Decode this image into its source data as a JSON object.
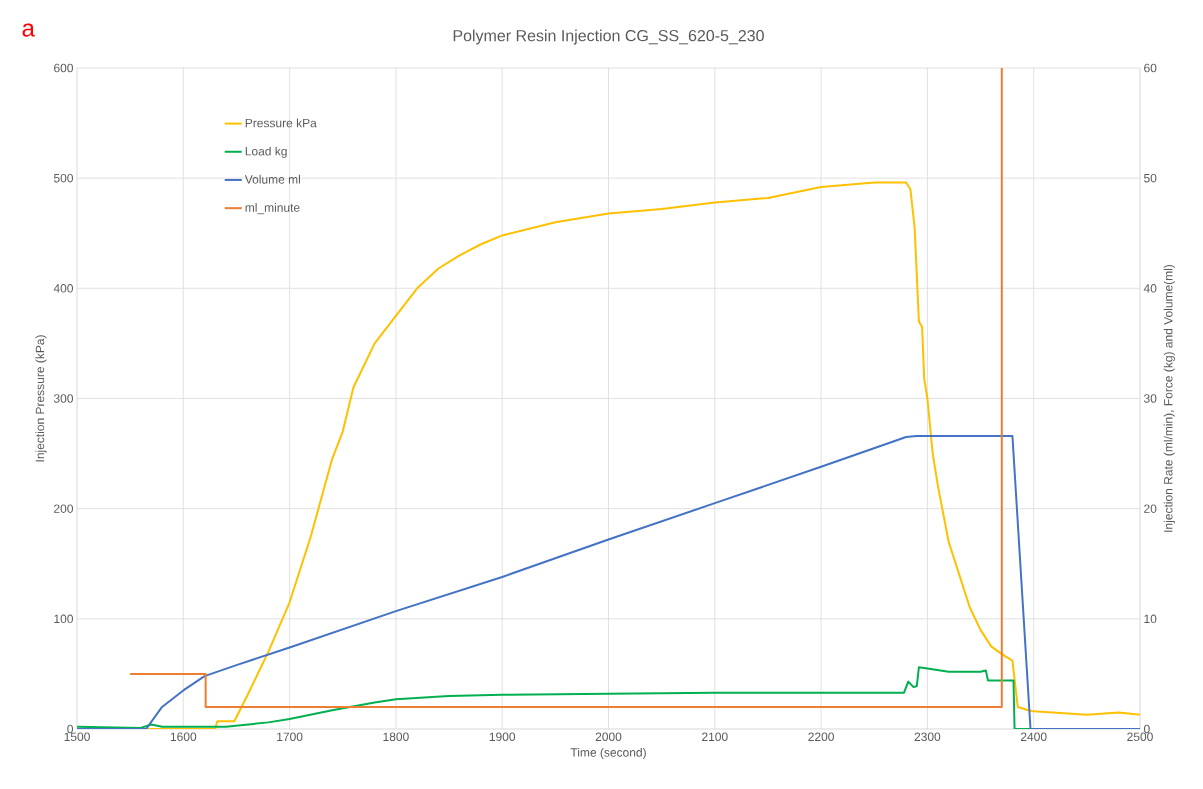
{
  "chart_data": {
    "type": "line",
    "title": "Polymer Resin Injection CG_SS_620-5_230",
    "xlabel": "Time (second)",
    "ylabel": "Injection Pressure (kPa)",
    "y2label": "Injection Rate (ml/min), Force (kg) and Volume(ml)",
    "annotations": [
      "a"
    ],
    "xlim": [
      1500,
      2500
    ],
    "xticks": [
      1500,
      1600,
      1700,
      1800,
      1900,
      2000,
      2100,
      2200,
      2300,
      2400,
      2500
    ],
    "ylim": [
      0,
      600
    ],
    "yticks": [
      0,
      100,
      200,
      300,
      400,
      500,
      600
    ],
    "y2lim": [
      0,
      60
    ],
    "y2ticks": [
      0,
      10,
      20,
      30,
      40,
      50,
      60
    ],
    "grid": true,
    "legend": "top left",
    "series": [
      {
        "name": "Pressure kPa",
        "color": "#ffc000",
        "x": [
          1565,
          1630,
          1632,
          1648,
          1660,
          1680,
          1700,
          1720,
          1740,
          1750,
          1760,
          1780,
          1800,
          1820,
          1840,
          1860,
          1880,
          1900,
          1950,
          2000,
          2050,
          2100,
          2150,
          2200,
          2250,
          2280,
          2284,
          2288,
          2292,
          2295,
          2297,
          2300,
          2305,
          2310,
          2320,
          2330,
          2340,
          2350,
          2360,
          2370,
          2380,
          2385,
          2395,
          2400,
          2450,
          2480,
          2500
        ],
        "values": [
          0,
          0,
          7,
          7,
          30,
          70,
          115,
          175,
          245,
          270,
          310,
          350,
          375,
          400,
          418,
          430,
          440,
          448,
          460,
          468,
          472,
          478,
          482,
          492,
          496,
          496,
          490,
          455,
          370,
          365,
          318,
          300,
          250,
          220,
          170,
          140,
          110,
          90,
          75,
          68,
          62,
          20,
          17,
          16,
          13,
          15,
          13
        ]
      },
      {
        "name": "Load kg",
        "color": "#00b050",
        "axis": "y2",
        "x": [
          1500,
          1560,
          1570,
          1580,
          1640,
          1680,
          1700,
          1740,
          1780,
          1800,
          1850,
          1900,
          2000,
          2100,
          2250,
          2278,
          2282,
          2287,
          2290,
          2292,
          2300,
          2320,
          2350,
          2355,
          2357,
          2381,
          2382,
          2500
        ],
        "values": [
          0.2,
          0.1,
          0.4,
          0.2,
          0.2,
          0.6,
          0.9,
          1.7,
          2.4,
          2.7,
          3.0,
          3.1,
          3.2,
          3.3,
          3.3,
          3.3,
          4.3,
          3.8,
          3.9,
          5.6,
          5.5,
          5.2,
          5.2,
          5.3,
          4.4,
          4.4,
          0,
          0
        ]
      },
      {
        "name": "Volume ml",
        "color": "#4472c4",
        "axis": "y2",
        "x": [
          1500,
          1565,
          1580,
          1600,
          1620,
          1650,
          1700,
          1800,
          1900,
          2000,
          2100,
          2200,
          2280,
          2290,
          2380,
          2397,
          2500
        ],
        "values": [
          0,
          0,
          2,
          3.5,
          4.8,
          5.8,
          7.4,
          10.7,
          13.8,
          17.2,
          20.5,
          23.8,
          26.5,
          26.6,
          26.6,
          0,
          0
        ]
      },
      {
        "name": "ml_minute",
        "color": "#ed7d31",
        "axis": "y2",
        "x": [
          1550,
          1621,
          1621,
          2370,
          2370
        ],
        "values": [
          5,
          5,
          2,
          2,
          60
        ]
      }
    ]
  }
}
